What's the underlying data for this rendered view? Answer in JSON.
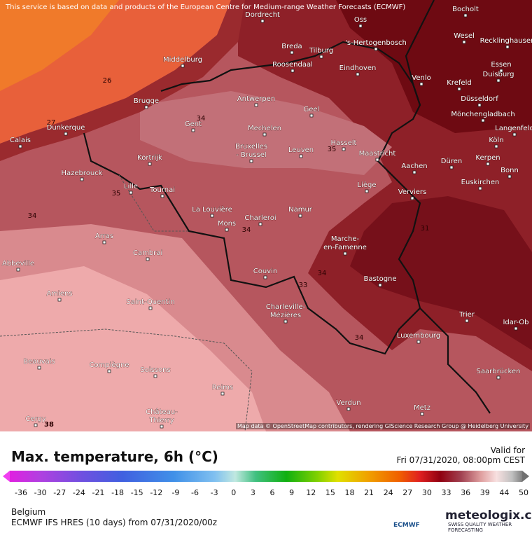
{
  "notice": "This service is based on data and products of the European Centre for Medium-range Weather Forecasts (ECMWF)",
  "attribution": "Map data © OpenStreetMap contributors, rendering GIScience Research Group @ Heidelberg University",
  "cities": [
    "Dordrecht",
    "Oss",
    "Bocholt",
    "Wesel",
    "Recklinghausen",
    "Breda",
    "Tilburg",
    "'s-Hertogenbosch",
    "Essen",
    "Middelburg",
    "Roosendaal",
    "Eindhoven",
    "Venlo",
    "Krefeld",
    "Duisburg",
    "Düsseldorf",
    "Mönchengladbach",
    "Brugge",
    "Antwerpen",
    "Geel",
    "Gent",
    "Langenfeld",
    "Dunkerque",
    "Mechelen",
    "Hasselt",
    "Köln",
    "Calais",
    "Bruxelles",
    "- Brussel",
    "Leuven",
    "Maastricht",
    "Kortrijk",
    "Düren",
    "Kerpen",
    "Aachen",
    "Bonn",
    "Hazebrouck",
    "Euskirchen",
    "Lille",
    "Liège",
    "Tournai",
    "Verviers",
    "La Louvière",
    "Namur",
    "Charleroi",
    "Mons",
    "Arras",
    "Marche-",
    "en-Famenne",
    "Cambrai",
    "Abbeville",
    "Couvin",
    "Bastogne",
    "Amiens",
    "Saint-Quentin",
    "Charleville-",
    "Mézières",
    "Trier",
    "Idar-Ob",
    "Luxembourg",
    "Beauvais",
    "Compiègne",
    "Soissons",
    "Saarbrücken",
    "Reims",
    "Verdun",
    "Metz",
    "Château-",
    "Thierry",
    "Cergy"
  ],
  "contour_labels": [
    26,
    27,
    34,
    35,
    35,
    34,
    34,
    31,
    34,
    33,
    34,
    38
  ],
  "title": "Max. temperature, 6h (°C)",
  "valid_label": "Valid for",
  "valid_time": "Fri 07/31/2020, 08:00pm CEST",
  "colorbar": {
    "ticks": [
      -36,
      -30,
      -27,
      -24,
      -21,
      -18,
      -15,
      -12,
      -9,
      -6,
      -3,
      0,
      3,
      6,
      9,
      12,
      15,
      18,
      21,
      24,
      27,
      30,
      33,
      36,
      39,
      44,
      50
    ]
  },
  "region": "Belgium",
  "model": "ECMWF IFS HRES (10 days) from 07/31/2020/00z",
  "logo": {
    "ecmwf": "ECMWF",
    "brand": "meteologix.com",
    "tagline": "SWISS QUALITY WEATHER FORECASTING"
  }
}
